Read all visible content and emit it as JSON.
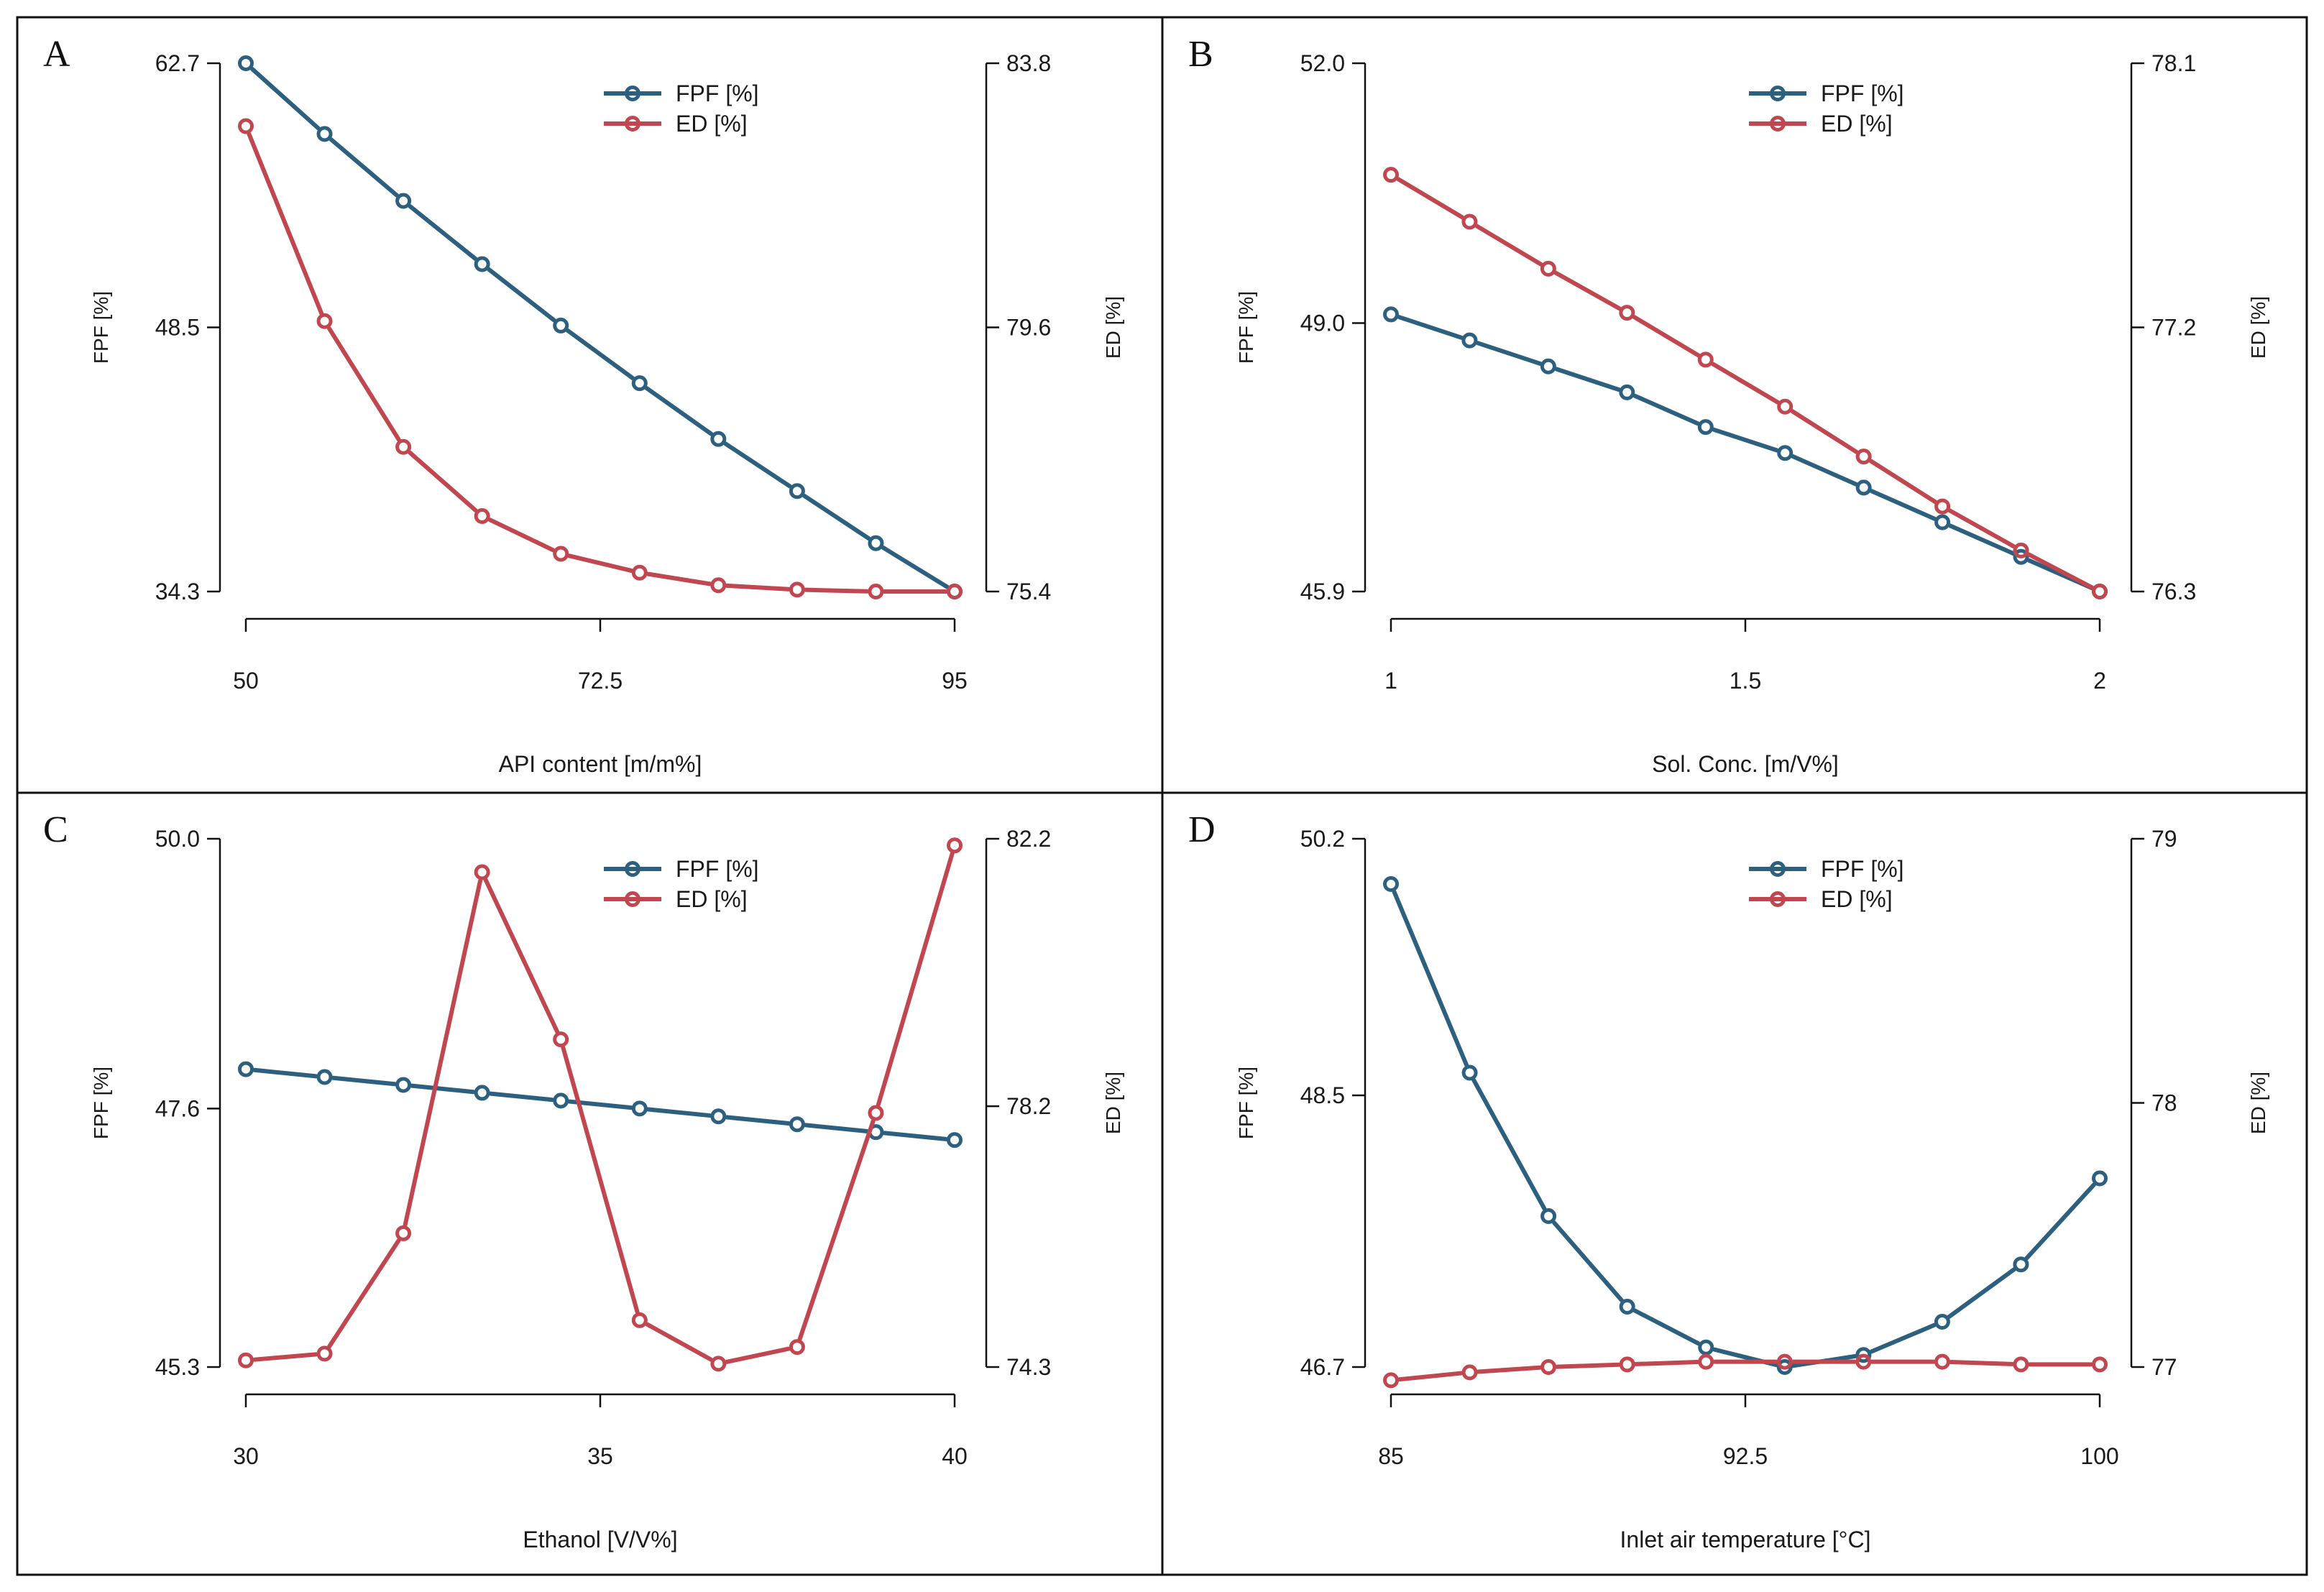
{
  "colors": {
    "fpf": "#2d5f7e",
    "ed": "#c0474f",
    "axis": "#111111",
    "frame": "#111111"
  },
  "chart_data": [
    {
      "panel": "A",
      "type": "line",
      "xlabel": "API content [m/m%]",
      "ylabel_left": "FPF [%]",
      "ylabel_right": "ED [%]",
      "xlim": [
        50,
        95
      ],
      "xticks": [
        50,
        72.5,
        95
      ],
      "xtick_labels": [
        "50",
        "72.5",
        "95"
      ],
      "ylim_left": [
        34.3,
        62.7
      ],
      "yticks_left": [
        34.3,
        48.5,
        62.7
      ],
      "ytick_labels_left": [
        "34.3",
        "48.5",
        "62.7"
      ],
      "ylim_right": [
        75.4,
        83.8
      ],
      "yticks_right": [
        75.4,
        79.6,
        83.8
      ],
      "ytick_labels_right": [
        "75.4",
        "79.6",
        "83.8"
      ],
      "legend": [
        "FPF [%]",
        "ED [%]"
      ],
      "x": [
        50,
        55,
        60,
        65,
        70,
        75,
        80,
        85,
        90,
        95
      ],
      "series": [
        {
          "name": "FPF [%]",
          "axis": "left",
          "values": [
            62.7,
            58.9,
            55.3,
            51.9,
            48.6,
            45.5,
            42.5,
            39.7,
            36.9,
            34.3
          ]
        },
        {
          "name": "ED [%]",
          "axis": "right",
          "values": [
            82.8,
            79.7,
            77.7,
            76.6,
            76.0,
            75.7,
            75.5,
            75.43,
            75.4,
            75.4
          ]
        }
      ]
    },
    {
      "panel": "B",
      "type": "line",
      "xlabel": "Sol. Conc. [m/V%]",
      "ylabel_left": "FPF [%]",
      "ylabel_right": "ED [%]",
      "xlim": [
        1,
        2
      ],
      "xticks": [
        1,
        1.5,
        2
      ],
      "xtick_labels": [
        "1",
        "1.5",
        "2"
      ],
      "ylim_left": [
        45.9,
        52.0
      ],
      "yticks_left": [
        45.9,
        49.0,
        52.0
      ],
      "ytick_labels_left": [
        "45.9",
        "49.0",
        "52.0"
      ],
      "ylim_right": [
        76.3,
        78.1
      ],
      "yticks_right": [
        76.3,
        77.2,
        78.1
      ],
      "ytick_labels_right": [
        "76.3",
        "77.2",
        "78.1"
      ],
      "legend": [
        "FPF [%]",
        "ED [%]"
      ],
      "x": [
        1,
        1.111,
        1.222,
        1.333,
        1.444,
        1.556,
        1.667,
        1.778,
        1.889,
        2
      ],
      "series": [
        {
          "name": "FPF [%]",
          "axis": "left",
          "values": [
            49.1,
            48.8,
            48.5,
            48.2,
            47.8,
            47.5,
            47.1,
            46.7,
            46.3,
            45.9
          ]
        },
        {
          "name": "ED [%]",
          "axis": "right",
          "values": [
            77.72,
            77.56,
            77.4,
            77.25,
            77.09,
            76.93,
            76.76,
            76.59,
            76.44,
            76.3
          ]
        }
      ]
    },
    {
      "panel": "C",
      "type": "line",
      "xlabel": "Ethanol [V/V%]",
      "ylabel_left": "FPF [%]",
      "ylabel_right": "ED [%]",
      "xlim": [
        30,
        40
      ],
      "xticks": [
        30,
        35,
        40
      ],
      "xtick_labels": [
        "30",
        "35",
        "40"
      ],
      "ylim_left": [
        45.3,
        50.0
      ],
      "yticks_left": [
        45.3,
        47.6,
        50.0
      ],
      "ytick_labels_left": [
        "45.3",
        "47.6",
        "50.0"
      ],
      "ylim_right": [
        74.3,
        82.2
      ],
      "yticks_right": [
        74.3,
        78.2,
        82.2
      ],
      "ytick_labels_right": [
        "74.3",
        "78.2",
        "82.2"
      ],
      "legend": [
        "FPF [%]",
        "ED [%]"
      ],
      "x": [
        30,
        31.111,
        32.222,
        33.333,
        34.444,
        35.556,
        36.667,
        37.778,
        38.889,
        40
      ],
      "series": [
        {
          "name": "FPF [%]",
          "axis": "left",
          "values": [
            47.95,
            47.88,
            47.81,
            47.74,
            47.67,
            47.6,
            47.53,
            47.46,
            47.39,
            47.32
          ]
        },
        {
          "name": "ED [%]",
          "axis": "right",
          "values": [
            74.4,
            74.5,
            76.3,
            81.7,
            79.2,
            75.0,
            74.35,
            74.6,
            78.1,
            82.1
          ]
        }
      ]
    },
    {
      "panel": "D",
      "type": "line",
      "xlabel": "Inlet air temperature [°C]",
      "ylabel_left": "FPF [%]",
      "ylabel_right": "ED [%]",
      "xlim": [
        85,
        100
      ],
      "xticks": [
        85,
        92.5,
        100
      ],
      "xtick_labels": [
        "85",
        "92.5",
        "100"
      ],
      "ylim_left": [
        46.7,
        50.2
      ],
      "yticks_left": [
        46.7,
        48.5,
        50.2
      ],
      "ytick_labels_left": [
        "46.7",
        "48.5",
        "50.2"
      ],
      "ylim_right": [
        77,
        79
      ],
      "yticks_right": [
        77,
        78,
        79
      ],
      "ytick_labels_right": [
        "77",
        "78",
        "79"
      ],
      "legend": [
        "FPF [%]",
        "ED [%]"
      ],
      "x": [
        85,
        86.667,
        88.333,
        90,
        91.667,
        93.333,
        95,
        96.667,
        98.333,
        100
      ],
      "series": [
        {
          "name": "FPF [%]",
          "axis": "left",
          "values": [
            49.9,
            48.65,
            47.7,
            47.1,
            46.83,
            46.7,
            46.78,
            47.0,
            47.38,
            47.95
          ]
        },
        {
          "name": "ED [%]",
          "axis": "right",
          "values": [
            76.95,
            76.98,
            77.0,
            77.01,
            77.02,
            77.02,
            77.02,
            77.02,
            77.01,
            77.01
          ]
        }
      ]
    }
  ]
}
